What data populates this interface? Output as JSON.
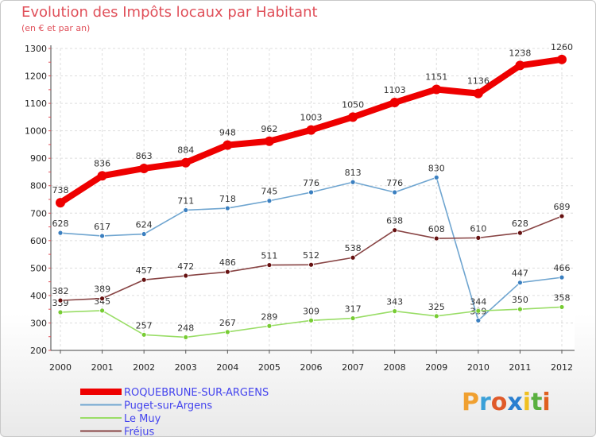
{
  "header": {
    "title": "Evolution des Impôts locaux par Habitant",
    "subtitle": "(en € et par an)"
  },
  "logo": {
    "letters": [
      "P",
      "r",
      "o",
      "x",
      "i",
      "t",
      "i"
    ],
    "colors": [
      "#f0a030",
      "#3aa0d8",
      "#e05a2a",
      "#2a7fd0",
      "#f0c020",
      "#5ab040",
      "#e06020"
    ]
  },
  "chart_data": {
    "type": "line",
    "title": "Evolution des Impôts locaux par Habitant",
    "subtitle": "(en € et par an)",
    "xlabel": "",
    "ylabel": "",
    "x": [
      "2000",
      "2001",
      "2002",
      "2003",
      "2004",
      "2005",
      "2006",
      "2007",
      "2008",
      "2009",
      "2010",
      "2011",
      "2012"
    ],
    "ylim": [
      200,
      1300
    ],
    "yticks": [
      200,
      300,
      400,
      500,
      600,
      700,
      800,
      900,
      1000,
      1100,
      1200,
      1300
    ],
    "grid": true,
    "legend_position": "bottom-left",
    "series": [
      {
        "name": "ROQUEBRUNE-SUR-ARGENS",
        "color": "#ee0000",
        "point_color": "#ee0000",
        "values": [
          738,
          836,
          863,
          884,
          948,
          962,
          1003,
          1050,
          1103,
          1151,
          1136,
          1238,
          1260
        ],
        "labels": [
          "738",
          "836",
          "863",
          "884",
          "948",
          "962",
          "1003",
          "1050",
          "1103",
          "1151",
          "1136",
          "1238",
          "1260"
        ]
      },
      {
        "name": "Puget-sur-Argens",
        "color": "#6fa5d0",
        "point_color": "#3a7fc0",
        "values": [
          628,
          617,
          624,
          711,
          718,
          745,
          776,
          813,
          776,
          830,
          309,
          447,
          466
        ],
        "labels": [
          "628",
          "617",
          "624",
          "711",
          "718",
          "745",
          "776",
          "813",
          "776",
          "830",
          "309",
          "447",
          "466"
        ]
      },
      {
        "name": "Le Muy",
        "color": "#99dd66",
        "point_color": "#77cc33",
        "values": [
          339,
          345,
          257,
          248,
          267,
          289,
          309,
          317,
          343,
          325,
          344,
          350,
          358
        ],
        "labels": [
          "339",
          "345",
          "257",
          "248",
          "267",
          "289",
          "309",
          "317",
          "343",
          "325",
          "344",
          "350",
          "358"
        ]
      },
      {
        "name": "Fréjus",
        "color": "#884444",
        "point_color": "#661111",
        "values": [
          382,
          389,
          457,
          472,
          486,
          511,
          512,
          538,
          638,
          608,
          610,
          628,
          689
        ],
        "labels": [
          "382",
          "389",
          "457",
          "472",
          "486",
          "511",
          "512",
          "538",
          "638",
          "608",
          "610",
          "628",
          "689"
        ]
      }
    ]
  }
}
